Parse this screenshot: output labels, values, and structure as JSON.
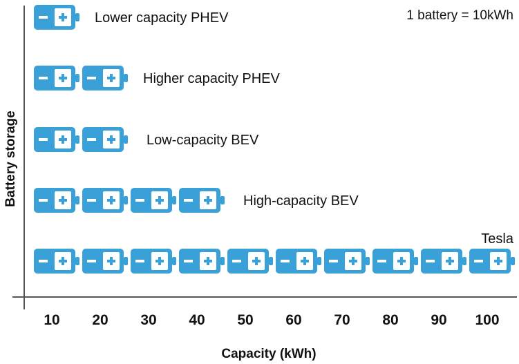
{
  "chart_data": {
    "type": "bar",
    "title": "",
    "xlabel": "Capacity (kWh)",
    "ylabel": "Battery storage",
    "note": "1 battery = 10kWh",
    "unit_per_icon": 10,
    "categories": [
      "Lower capacity PHEV",
      "Higher capacity PHEV",
      "Low-capacity BEV",
      "High-capacity BEV",
      "Tesla"
    ],
    "values": [
      10,
      20,
      20,
      40,
      100
    ],
    "x_ticks": [
      "10",
      "20",
      "30",
      "40",
      "50",
      "60",
      "70",
      "80",
      "90",
      "100"
    ],
    "xlim": [
      0,
      100
    ],
    "grid": false,
    "colors": {
      "battery": "#3aa0d8",
      "battery_face": "#ffffff",
      "axis": "#555555"
    }
  }
}
